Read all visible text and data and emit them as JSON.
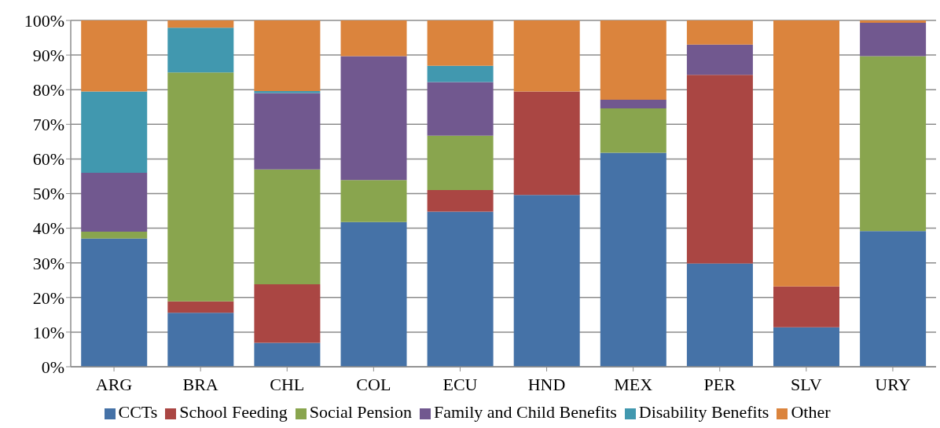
{
  "chart_data": {
    "type": "bar",
    "stacked": true,
    "categories": [
      "ARG",
      "BRA",
      "CHL",
      "COL",
      "ECU",
      "HND",
      "MEX",
      "PER",
      "SLV",
      "URY"
    ],
    "series": [
      {
        "name": "CCTs",
        "color": "#4572a7",
        "values": [
          37,
          15.6,
          6.9,
          41.8,
          44.8,
          49.6,
          61.8,
          29.8,
          11.4,
          39.2
        ]
      },
      {
        "name": "School Feeding",
        "color": "#aa4643",
        "values": [
          0,
          3.3,
          16.9,
          0,
          6.2,
          29.9,
          0,
          54.5,
          11.8,
          0
        ]
      },
      {
        "name": "Social Pension",
        "color": "#89a54e",
        "values": [
          2,
          66.1,
          33.2,
          12.1,
          15.7,
          0,
          12.8,
          0,
          0,
          50.5
        ]
      },
      {
        "name": "Family and Child Benefits",
        "color": "#71588f",
        "values": [
          17,
          0,
          22,
          35.8,
          15.5,
          0,
          2.5,
          8.7,
          0,
          9.6
        ]
      },
      {
        "name": "Disability Benefits",
        "color": "#4198af",
        "values": [
          23.5,
          12.9,
          0.6,
          0,
          4.7,
          0,
          0,
          0,
          0,
          0
        ]
      },
      {
        "name": "Other",
        "color": "#db843d",
        "values": [
          20.5,
          2.1,
          20.4,
          10.3,
          13.1,
          20.5,
          22.9,
          7,
          76.8,
          0.7
        ]
      }
    ],
    "ylim": [
      0,
      100
    ],
    "yticks": [
      {
        "value": 0,
        "label": "0%"
      },
      {
        "value": 10,
        "label": "10%"
      },
      {
        "value": 20,
        "label": "20%"
      },
      {
        "value": 30,
        "label": "30%"
      },
      {
        "value": 40,
        "label": "40%"
      },
      {
        "value": 50,
        "label": "50%"
      },
      {
        "value": 60,
        "label": "60%"
      },
      {
        "value": 70,
        "label": "70%"
      },
      {
        "value": 80,
        "label": "80%"
      },
      {
        "value": 90,
        "label": "90%"
      },
      {
        "value": 100,
        "label": "100%"
      }
    ],
    "grid": "y",
    "legend": "bottom"
  }
}
